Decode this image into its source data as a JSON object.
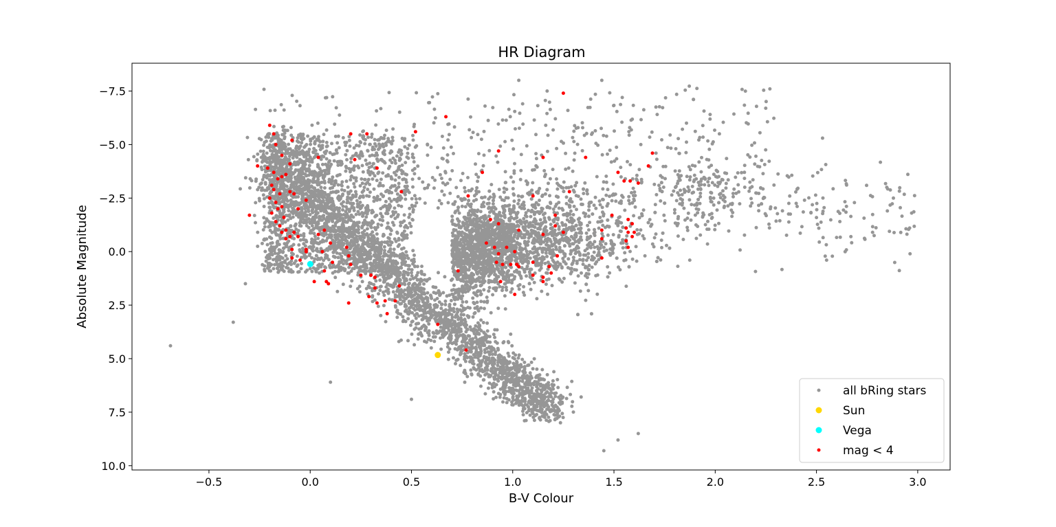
{
  "chart_data": {
    "type": "scatter",
    "title": "HR Diagram",
    "xlabel": "B-V Colour",
    "ylabel": "Absolute Magnitude",
    "xlim": [
      -0.88,
      3.16
    ],
    "ylim": [
      10.2,
      -8.8
    ],
    "y_inverted": true,
    "xticks": [
      -0.5,
      0.0,
      0.5,
      1.0,
      1.5,
      2.0,
      2.5,
      3.0
    ],
    "xtick_labels": [
      "−0.5",
      "0.0",
      "0.5",
      "1.0",
      "1.5",
      "2.0",
      "2.5",
      "3.0"
    ],
    "yticks": [
      -7.5,
      -5.0,
      -2.5,
      0.0,
      2.5,
      5.0,
      7.5,
      10.0
    ],
    "ytick_labels": [
      "−7.5",
      "−5.0",
      "−2.5",
      "0.0",
      "2.5",
      "5.0",
      "7.5",
      "10.0"
    ],
    "legend_position": "lower-right",
    "series": [
      {
        "name": "all bRing stars",
        "color": "#969696",
        "marker": "small-dot",
        "regions": [
          {
            "shape": "main-sequence",
            "x_range": [
              -0.2,
              1.2
            ],
            "y_from": -4.5,
            "y_to": 7.5,
            "count": 2600
          },
          {
            "shape": "hot-upper",
            "x_range": [
              -0.2,
              0.5
            ],
            "y_range": [
              -5.5,
              1.0
            ],
            "count": 1400
          },
          {
            "shape": "giant-branch",
            "x_range": [
              0.7,
              2.0
            ],
            "y_range": [
              -4.5,
              3.5
            ],
            "count": 2600
          },
          {
            "shape": "supergiants",
            "x_range": [
              -0.2,
              2.3
            ],
            "y_range": [
              -7.8,
              -2.0
            ],
            "count": 600
          },
          {
            "shape": "red-giant-tail",
            "x_range": [
              1.8,
              3.0
            ],
            "y_range": [
              -5.0,
              0.5
            ],
            "count": 260
          }
        ],
        "points": [
          {
            "x": -0.69,
            "y": 4.4
          },
          {
            "x": -0.38,
            "y": 3.3
          },
          {
            "x": -0.32,
            "y": 1.5
          },
          {
            "x": 1.44,
            "y": -8.0
          },
          {
            "x": 1.03,
            "y": -8.0
          },
          {
            "x": 2.27,
            "y": -7.6
          },
          {
            "x": 2.53,
            "y": -5.3
          },
          {
            "x": 2.55,
            "y": 0.4
          },
          {
            "x": 2.97,
            "y": -1.8
          },
          {
            "x": 2.96,
            "y": -1.1
          },
          {
            "x": 2.85,
            "y": -1.9
          },
          {
            "x": 2.67,
            "y": -0.7
          },
          {
            "x": 1.45,
            "y": 9.3
          },
          {
            "x": 1.62,
            "y": 8.5
          },
          {
            "x": 1.52,
            "y": 8.8
          },
          {
            "x": 0.5,
            "y": 6.9
          },
          {
            "x": 0.1,
            "y": 6.1
          },
          {
            "x": 1.17,
            "y": -7.5
          }
        ]
      },
      {
        "name": "Sun",
        "color": "#ffd700",
        "marker": "large-dot",
        "points": [
          {
            "x": 0.63,
            "y": 4.83
          }
        ]
      },
      {
        "name": "Vega",
        "color": "#00ffff",
        "marker": "large-dot",
        "points": [
          {
            "x": 0.0,
            "y": 0.58
          }
        ]
      },
      {
        "name": "mag < 4",
        "color": "#ff0000",
        "marker": "small-dot",
        "points": [
          {
            "x": 1.25,
            "y": -7.4
          },
          {
            "x": 0.67,
            "y": -6.3
          },
          {
            "x": -0.2,
            "y": -5.9
          },
          {
            "x": -0.18,
            "y": -5.5
          },
          {
            "x": -0.09,
            "y": -5.2
          },
          {
            "x": -0.17,
            "y": -5.0
          },
          {
            "x": 0.52,
            "y": -5.6
          },
          {
            "x": 0.2,
            "y": -5.5
          },
          {
            "x": 0.28,
            "y": -5.5
          },
          {
            "x": -0.14,
            "y": -4.5
          },
          {
            "x": 0.04,
            "y": -4.4
          },
          {
            "x": 0.22,
            "y": -4.3
          },
          {
            "x": 0.33,
            "y": -3.9
          },
          {
            "x": -0.26,
            "y": -4.0
          },
          {
            "x": -0.21,
            "y": -3.9
          },
          {
            "x": -0.1,
            "y": -4.1
          },
          {
            "x": -0.18,
            "y": -3.7
          },
          {
            "x": -0.16,
            "y": -3.4
          },
          {
            "x": -0.19,
            "y": -3.1
          },
          {
            "x": -0.14,
            "y": -3.5
          },
          {
            "x": -0.12,
            "y": -3.6
          },
          {
            "x": -0.18,
            "y": -2.9
          },
          {
            "x": -0.15,
            "y": -2.7
          },
          {
            "x": -0.2,
            "y": -2.5
          },
          {
            "x": -0.17,
            "y": -2.3
          },
          {
            "x": -0.14,
            "y": -2.1
          },
          {
            "x": -0.16,
            "y": -2.0
          },
          {
            "x": -0.19,
            "y": -1.8
          },
          {
            "x": -0.13,
            "y": -1.6
          },
          {
            "x": -0.17,
            "y": -1.4
          },
          {
            "x": -0.15,
            "y": -1.2
          },
          {
            "x": -0.1,
            "y": -2.8
          },
          {
            "x": -0.08,
            "y": -2.7
          },
          {
            "x": -0.06,
            "y": -2.0
          },
          {
            "x": -0.02,
            "y": -2.4
          },
          {
            "x": -0.12,
            "y": -1.0
          },
          {
            "x": -0.14,
            "y": -0.9
          },
          {
            "x": -0.1,
            "y": -0.7
          },
          {
            "x": -0.08,
            "y": -0.9
          },
          {
            "x": -0.06,
            "y": -0.7
          },
          {
            "x": -0.12,
            "y": -0.6
          },
          {
            "x": -0.3,
            "y": -1.7
          },
          {
            "x": -0.09,
            "y": -0.1
          },
          {
            "x": -0.02,
            "y": 0.0
          },
          {
            "x": -0.02,
            "y": -0.1
          },
          {
            "x": -0.05,
            "y": 0.4
          },
          {
            "x": -0.09,
            "y": 0.3
          },
          {
            "x": 0.04,
            "y": -0.8
          },
          {
            "x": 0.07,
            "y": -1.0
          },
          {
            "x": 0.1,
            "y": -0.4
          },
          {
            "x": 0.06,
            "y": 0.0
          },
          {
            "x": 0.18,
            "y": -0.2
          },
          {
            "x": 0.19,
            "y": 0.2
          },
          {
            "x": 0.11,
            "y": 0.5
          },
          {
            "x": 0.2,
            "y": 0.6
          },
          {
            "x": 0.07,
            "y": 0.9
          },
          {
            "x": 0.08,
            "y": 1.4
          },
          {
            "x": 0.09,
            "y": 1.5
          },
          {
            "x": 0.02,
            "y": 1.4
          },
          {
            "x": 0.25,
            "y": 1.1
          },
          {
            "x": 0.3,
            "y": 1.1
          },
          {
            "x": 0.32,
            "y": 1.2
          },
          {
            "x": 0.32,
            "y": 1.7
          },
          {
            "x": 0.44,
            "y": 1.6
          },
          {
            "x": 0.29,
            "y": 2.1
          },
          {
            "x": 0.33,
            "y": 2.4
          },
          {
            "x": 0.37,
            "y": 2.3
          },
          {
            "x": 0.42,
            "y": 2.3
          },
          {
            "x": 0.19,
            "y": 2.4
          },
          {
            "x": 0.38,
            "y": 2.9
          },
          {
            "x": 0.63,
            "y": 3.4
          },
          {
            "x": 0.77,
            "y": 4.6
          },
          {
            "x": 0.45,
            "y": -2.8
          },
          {
            "x": 0.78,
            "y": -2.6
          },
          {
            "x": 0.85,
            "y": -3.7
          },
          {
            "x": 0.93,
            "y": -4.7
          },
          {
            "x": 1.15,
            "y": -4.4
          },
          {
            "x": 1.36,
            "y": -4.4
          },
          {
            "x": 1.69,
            "y": -4.6
          },
          {
            "x": 1.67,
            "y": -4.0
          },
          {
            "x": 1.1,
            "y": -2.6
          },
          {
            "x": 1.28,
            "y": -2.8
          },
          {
            "x": 0.89,
            "y": -1.5
          },
          {
            "x": 0.93,
            "y": -1.3
          },
          {
            "x": 1.03,
            "y": -1.0
          },
          {
            "x": 0.87,
            "y": -0.4
          },
          {
            "x": 0.91,
            "y": -0.2
          },
          {
            "x": 0.97,
            "y": -0.2
          },
          {
            "x": 1.01,
            "y": 0.0
          },
          {
            "x": 0.93,
            "y": 0.1
          },
          {
            "x": 0.92,
            "y": 0.5
          },
          {
            "x": 0.95,
            "y": 0.6
          },
          {
            "x": 0.99,
            "y": 0.6
          },
          {
            "x": 1.02,
            "y": 0.6
          },
          {
            "x": 1.03,
            "y": 0.7
          },
          {
            "x": 1.1,
            "y": 0.5
          },
          {
            "x": 1.1,
            "y": 1.1
          },
          {
            "x": 1.15,
            "y": 1.2
          },
          {
            "x": 1.15,
            "y": 1.4
          },
          {
            "x": 1.18,
            "y": 0.7
          },
          {
            "x": 1.19,
            "y": 1.0
          },
          {
            "x": 1.22,
            "y": 0.2
          },
          {
            "x": 0.94,
            "y": 1.4
          },
          {
            "x": 1.01,
            "y": 2.0
          },
          {
            "x": 0.73,
            "y": 0.9
          },
          {
            "x": 1.15,
            "y": -0.8
          },
          {
            "x": 1.21,
            "y": -1.2
          },
          {
            "x": 1.21,
            "y": -1.7
          },
          {
            "x": 1.25,
            "y": -0.9
          },
          {
            "x": 1.44,
            "y": -1.0
          },
          {
            "x": 1.44,
            "y": -0.6
          },
          {
            "x": 1.44,
            "y": 0.3
          },
          {
            "x": 1.49,
            "y": -1.7
          },
          {
            "x": 1.52,
            "y": -3.7
          },
          {
            "x": 1.55,
            "y": -3.3
          },
          {
            "x": 1.58,
            "y": -3.3
          },
          {
            "x": 1.62,
            "y": -3.2
          },
          {
            "x": 1.57,
            "y": -1.5
          },
          {
            "x": 1.59,
            "y": -1.3
          },
          {
            "x": 1.56,
            "y": -1.1
          },
          {
            "x": 1.57,
            "y": -0.9
          },
          {
            "x": 1.59,
            "y": -0.7
          },
          {
            "x": 1.56,
            "y": -0.5
          },
          {
            "x": 1.57,
            "y": -0.2
          },
          {
            "x": 1.6,
            "y": -0.9
          }
        ]
      }
    ]
  }
}
